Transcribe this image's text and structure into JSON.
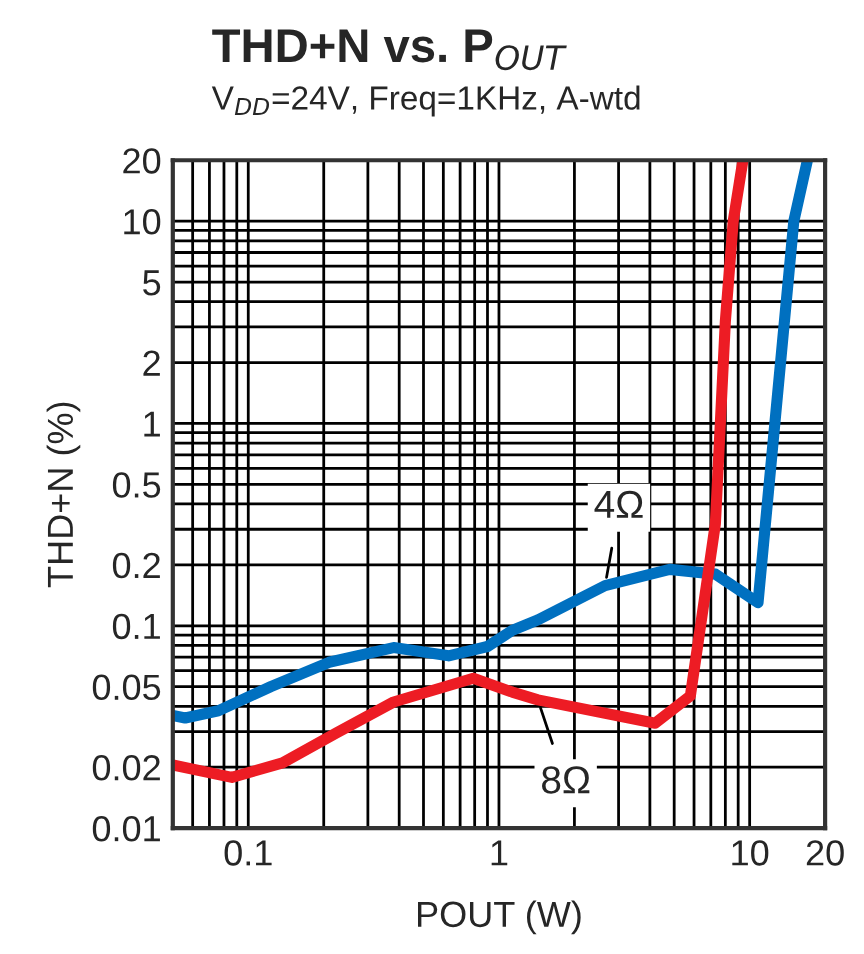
{
  "chart_data": {
    "type": "line",
    "title": "THD+N vs. P$_{OUT}$",
    "subtitle": "V$_{DD}$=24V, Freq=1KHz, A-wtd",
    "xlabel": "POUT (W)",
    "ylabel": "THD+N (%)",
    "log": "xy",
    "grid": true,
    "legend": false,
    "marker": "none",
    "line_style": "solid",
    "xlim": [
      0.05,
      20
    ],
    "xticks": [
      0.1,
      1,
      10,
      20
    ],
    "ylim": [
      0.01,
      20
    ],
    "yticks": [
      0.01,
      0.02,
      0.05,
      0.1,
      0.2,
      0.5,
      1,
      2,
      5,
      10,
      20
    ],
    "series": [
      {
        "name": "4Ω",
        "color": "#0070c0",
        "x": [
          0.05,
          0.056,
          0.076,
          0.123,
          0.21,
          0.38,
          0.63,
          0.9,
          1.13,
          1.43,
          2.65,
          4.8,
          7.3,
          10.8,
          15,
          17
        ],
        "values": [
          0.036,
          0.035,
          0.038,
          0.05,
          0.066,
          0.078,
          0.071,
          0.079,
          0.095,
          0.107,
          0.158,
          0.19,
          0.18,
          0.13,
          10,
          20
        ]
      },
      {
        "name": "8Ω",
        "color": "#ed1c24",
        "x": [
          0.05,
          0.086,
          0.137,
          0.224,
          0.38,
          0.79,
          1.13,
          1.43,
          4.2,
          5.8,
          7.3,
          8.0,
          8.6,
          9.4
        ],
        "values": [
          0.0205,
          0.0178,
          0.021,
          0.0295,
          0.042,
          0.055,
          0.047,
          0.043,
          0.033,
          0.045,
          0.32,
          3.2,
          10,
          20
        ]
      }
    ]
  }
}
